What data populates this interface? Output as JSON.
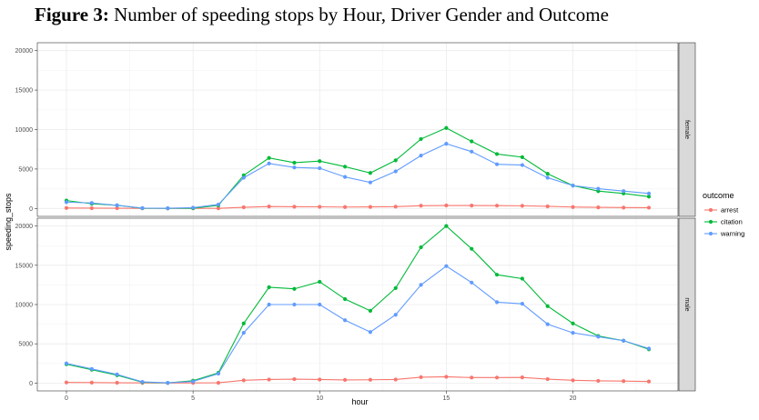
{
  "figure": {
    "title_prefix": "Figure 3:",
    "title_text": " Number of speeding stops by Hour, Driver Gender and Outcome"
  },
  "chart_data": {
    "type": "line",
    "xlabel": "hour",
    "ylabel": "speeding_stops",
    "x": [
      0,
      1,
      2,
      3,
      4,
      5,
      6,
      7,
      8,
      9,
      10,
      11,
      12,
      13,
      14,
      15,
      16,
      17,
      18,
      19,
      20,
      21,
      22,
      23
    ],
    "xlim": [
      -1.15,
      24.15
    ],
    "x_ticks": [
      0,
      5,
      10,
      15,
      20
    ],
    "ylim": [
      -1000,
      21000
    ],
    "y_ticks": [
      0,
      5000,
      10000,
      15000,
      20000
    ],
    "grid": true,
    "legend": {
      "title": "outcome",
      "placement": "right"
    },
    "series_colors": {
      "arrest": "#f8766d",
      "citation": "#00ba38",
      "warning": "#619cff"
    },
    "facets": [
      {
        "label": "female",
        "series": [
          {
            "name": "arrest",
            "values": [
              60,
              40,
              30,
              20,
              10,
              15,
              20,
              150,
              250,
              220,
              210,
              180,
              200,
              230,
              350,
              380,
              370,
              360,
              340,
              270,
              180,
              140,
              110,
              100
            ]
          },
          {
            "name": "citation",
            "values": [
              1000,
              600,
              400,
              30,
              20,
              30,
              400,
              4200,
              6400,
              5800,
              6000,
              5300,
              4500,
              6100,
              8800,
              10200,
              8500,
              6900,
              6500,
              4400,
              2900,
              2200,
              1900,
              1500
            ]
          },
          {
            "name": "warning",
            "values": [
              800,
              700,
              400,
              50,
              30,
              100,
              500,
              3900,
              5700,
              5200,
              5100,
              4000,
              3300,
              4700,
              6700,
              8200,
              7200,
              5600,
              5500,
              3900,
              2900,
              2500,
              2200,
              1900
            ]
          }
        ]
      },
      {
        "label": "male",
        "series": [
          {
            "name": "arrest",
            "values": [
              80,
              60,
              40,
              20,
              10,
              20,
              30,
              350,
              450,
              500,
              450,
              400,
              420,
              450,
              750,
              800,
              700,
              700,
              720,
              500,
              350,
              280,
              250,
              200
            ]
          },
          {
            "name": "citation",
            "values": [
              2400,
              1700,
              1000,
              100,
              20,
              300,
              1300,
              7600,
              12200,
              12000,
              12900,
              10700,
              9200,
              12100,
              17300,
              20000,
              17100,
              13800,
              13300,
              9800,
              7600,
              6000,
              5400,
              4300
            ]
          },
          {
            "name": "warning",
            "values": [
              2500,
              1800,
              1100,
              150,
              30,
              200,
              1200,
              6400,
              10000,
              10000,
              10000,
              8000,
              6500,
              8700,
              12500,
              14900,
              12800,
              10300,
              10100,
              7500,
              6400,
              5900,
              5400,
              4400
            ]
          }
        ]
      }
    ]
  }
}
